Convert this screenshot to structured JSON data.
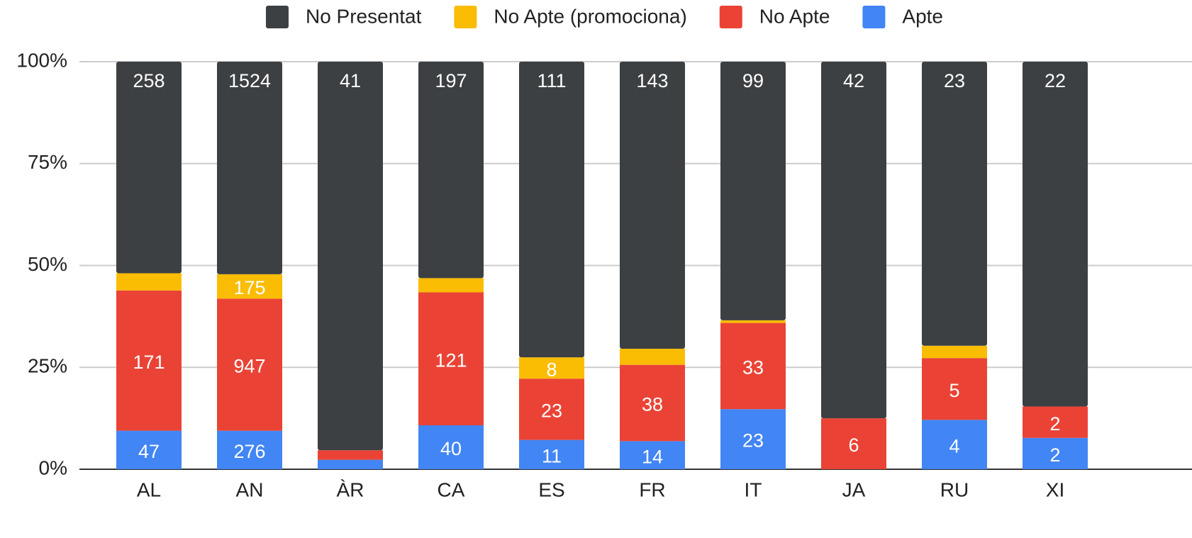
{
  "chart_data": {
    "type": "bar",
    "stack": "percent",
    "categories": [
      "AL",
      "AN",
      "ÀR",
      "CA",
      "ES",
      "FR",
      "IT",
      "JA",
      "RU",
      "XI"
    ],
    "series": [
      {
        "name": "No Presentat",
        "color": "#3c4043",
        "values": [
          258,
          1524,
          41,
          197,
          111,
          143,
          99,
          42,
          23,
          22
        ]
      },
      {
        "name": "No Apte (promociona)",
        "color": "#fbbc04",
        "values": [
          21,
          175,
          null,
          13,
          8,
          8,
          1,
          null,
          1,
          null
        ]
      },
      {
        "name": "No Apte",
        "color": "#ea4335",
        "values": [
          171,
          947,
          1,
          121,
          23,
          38,
          33,
          6,
          5,
          2
        ]
      },
      {
        "name": "Apte",
        "color": "#4285f4",
        "values": [
          47,
          276,
          1,
          40,
          11,
          14,
          23,
          null,
          4,
          2
        ]
      }
    ],
    "ylim": [
      0,
      100
    ],
    "yticks": [
      {
        "value": 0,
        "label": "0%"
      },
      {
        "value": 25,
        "label": "25%"
      },
      {
        "value": 50,
        "label": "50%"
      },
      {
        "value": 75,
        "label": "75%"
      },
      {
        "value": 100,
        "label": "100%"
      }
    ],
    "grid": true,
    "legend": "top"
  }
}
